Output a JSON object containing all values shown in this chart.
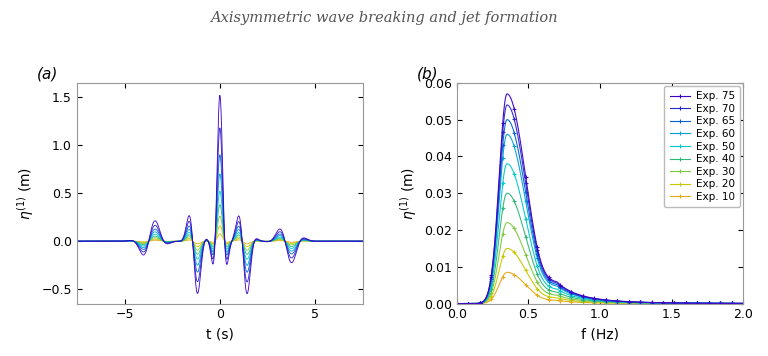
{
  "title": "Axisymmetric wave breaking and jet formation",
  "experiments": [
    10,
    20,
    30,
    40,
    50,
    60,
    65,
    70,
    75
  ],
  "colors_low_to_high": [
    "#e6a817",
    "#c8c800",
    "#7ec840",
    "#2eb878",
    "#00c8c8",
    "#00a0d4",
    "#0064d4",
    "#2828c8",
    "#3c00c8"
  ],
  "panel_a_label": "(a)",
  "panel_b_label": "(b)",
  "xlabel_a": "t (s)",
  "xlabel_b": "f (Hz)",
  "xlim_a": [
    -7.5,
    7.5
  ],
  "ylim_a": [
    -0.65,
    1.65
  ],
  "xlim_b": [
    0,
    2.0
  ],
  "ylim_b": [
    0,
    0.06
  ],
  "xticks_a": [
    -5,
    0,
    5
  ],
  "yticks_a": [
    -0.5,
    0.0,
    0.5,
    1.0,
    1.5
  ],
  "xticks_b": [
    0.0,
    0.5,
    1.0,
    1.5,
    2.0
  ],
  "yticks_b": [
    0,
    0.01,
    0.02,
    0.03,
    0.04,
    0.05,
    0.06
  ],
  "peak_amplitudes_a": [
    0.075,
    0.16,
    0.26,
    0.38,
    0.52,
    0.7,
    0.9,
    1.18,
    1.52
  ],
  "peak_amplitudes_b": [
    0.0085,
    0.015,
    0.022,
    0.03,
    0.038,
    0.046,
    0.05,
    0.054,
    0.057
  ],
  "legend_labels": [
    "Exp. 75",
    "Exp. 70",
    "Exp. 65",
    "Exp. 60",
    "Exp. 50",
    "Exp. 40",
    "Exp. 30",
    "Exp. 20",
    "Exp. 10"
  ]
}
